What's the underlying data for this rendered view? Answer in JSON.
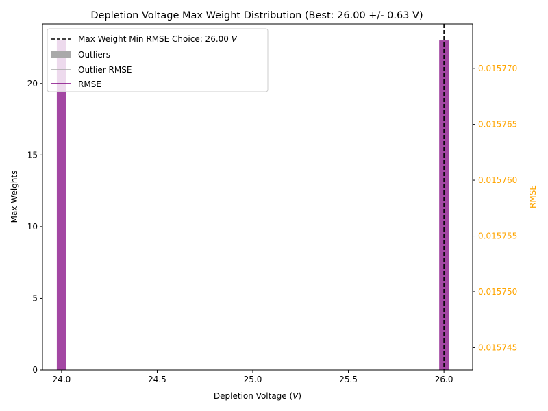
{
  "chart_data": {
    "type": "bar",
    "title": "Depletion Voltage Max Weight Distribution (Best: 26.00 +/- 0.63 V)",
    "xlabel": "Depletion Voltage (",
    "xlabel_italic": "V",
    "xlabel_suffix": ")",
    "ylabel": "Max Weights",
    "ylabel_right": "RMSE",
    "xlim": [
      23.9,
      26.15
    ],
    "ylim": [
      0,
      24.15
    ],
    "ylim_right": [
      0.015743,
      0.015774
    ],
    "x_ticks": [
      24.0,
      24.5,
      25.0,
      25.5,
      26.0
    ],
    "x_tick_labels": [
      "24.0",
      "24.5",
      "25.0",
      "25.5",
      "26.0"
    ],
    "y_ticks": [
      0,
      5,
      10,
      15,
      20
    ],
    "y_tick_labels": [
      "0",
      "5",
      "10",
      "15",
      "20"
    ],
    "y_right_ticks": [
      0.015745,
      0.01575,
      0.015755,
      0.01576,
      0.015765,
      0.01577
    ],
    "y_right_tick_labels": [
      "0.015745",
      "0.015750",
      "0.015755",
      "0.015760",
      "0.015765",
      "0.015770"
    ],
    "bar_width": 0.05,
    "bars": [
      {
        "x": 24.0,
        "value": 23
      },
      {
        "x": 26.0,
        "value": 23
      }
    ],
    "best_choice": 26.0,
    "legend": {
      "position": "upper-left",
      "entries": [
        {
          "label": "Max Weight Min RMSE Choice: 26.00 ",
          "label_italic": "V",
          "style": "dashed-line",
          "color": "#000000"
        },
        {
          "label": "Outliers",
          "style": "patch",
          "color": "#a9a9a9"
        },
        {
          "label": "Outlier RMSE",
          "style": "line",
          "color": "#a9a9a9"
        },
        {
          "label": "RMSE",
          "style": "line",
          "color": "#800080"
        }
      ]
    },
    "colors": {
      "bar": "#800080",
      "right_axis": "#ffa500",
      "choice_line": "#000000"
    },
    "grid": false
  }
}
